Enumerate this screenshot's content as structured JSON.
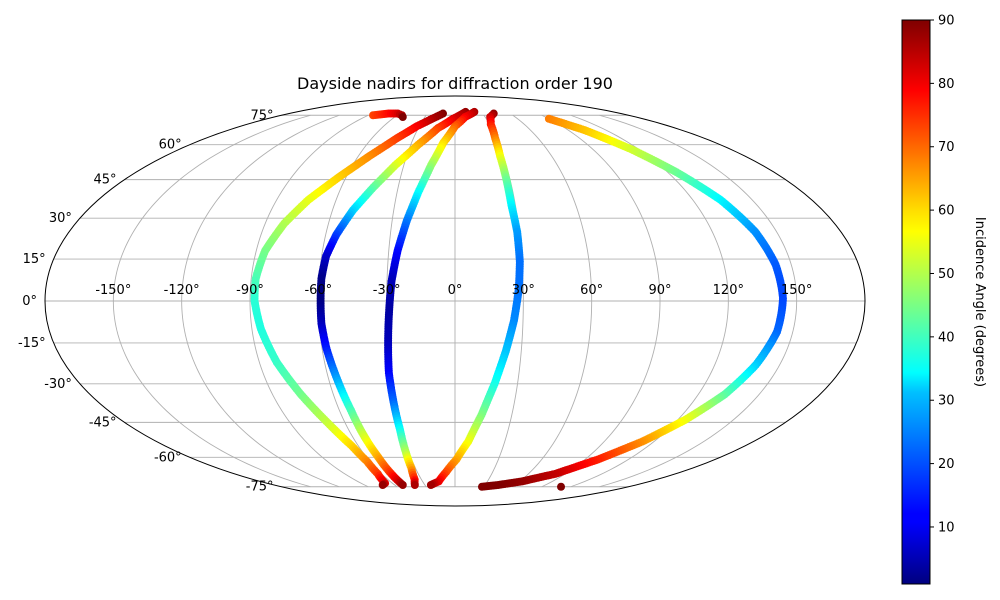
{
  "chart_data": {
    "type": "scatter",
    "projection": "mollweide",
    "title": "Dayside nadirs for diffraction order 190",
    "grid": true,
    "colormap": "jet",
    "lon_ticks": [
      -150,
      -120,
      -90,
      -60,
      -30,
      0,
      30,
      60,
      90,
      120,
      150
    ],
    "lon_tick_labels": [
      "-150°",
      "-120°",
      "-90°",
      "-60°",
      "-30°",
      "0°",
      "30°",
      "60°",
      "90°",
      "120°",
      "150°"
    ],
    "lat_ticks": [
      75,
      60,
      45,
      30,
      15,
      0,
      -15,
      -30,
      -45,
      -60,
      -75
    ],
    "lat_tick_labels": [
      "75°",
      "60°",
      "45°",
      "30°",
      "15°",
      "0°",
      "-15°",
      "-30°",
      "-45°",
      "-60°",
      "-75°"
    ],
    "colorbar": {
      "label": "Incidence Angle (degrees)",
      "range": [
        1,
        90
      ],
      "ticks": [
        10,
        20,
        30,
        40,
        50,
        60,
        70,
        80,
        90
      ],
      "tick_labels": [
        "10",
        "20",
        "30",
        "40",
        "50",
        "60",
        "70",
        "80",
        "90"
      ]
    },
    "series": [
      {
        "points": [
          {
            "lon": -85,
            "lat": 75,
            "inc": 73
          },
          {
            "lon": -72,
            "lat": 76,
            "inc": 78
          },
          {
            "lon": -62,
            "lat": 76,
            "inc": 82
          },
          {
            "lon": -55,
            "lat": 75,
            "inc": 86
          },
          {
            "lon": -52,
            "lat": 74,
            "inc": 90
          }
        ]
      },
      {
        "points": [
          {
            "lon": -13,
            "lat": 76,
            "inc": 90
          },
          {
            "lon": -22,
            "lat": 73,
            "inc": 86
          },
          {
            "lon": -32,
            "lat": 69,
            "inc": 80
          },
          {
            "lon": -42,
            "lat": 63,
            "inc": 74
          },
          {
            "lon": -53,
            "lat": 55,
            "inc": 67
          },
          {
            "lon": -64,
            "lat": 46,
            "inc": 61
          },
          {
            "lon": -74,
            "lat": 37,
            "inc": 55
          },
          {
            "lon": -81,
            "lat": 28,
            "inc": 50
          },
          {
            "lon": -86,
            "lat": 18,
            "inc": 45
          },
          {
            "lon": -88,
            "lat": 8,
            "inc": 41
          },
          {
            "lon": -88,
            "lat": 0,
            "inc": 38
          },
          {
            "lon": -86,
            "lat": -10,
            "inc": 37
          },
          {
            "lon": -82,
            "lat": -22,
            "inc": 39
          },
          {
            "lon": -76,
            "lat": -34,
            "inc": 44
          },
          {
            "lon": -69,
            "lat": -46,
            "inc": 52
          },
          {
            "lon": -64,
            "lat": -55,
            "inc": 60
          },
          {
            "lon": -62,
            "lat": -62,
            "inc": 67
          },
          {
            "lon": -63,
            "lat": -68,
            "inc": 74
          },
          {
            "lon": -67,
            "lat": -73,
            "inc": 82
          },
          {
            "lon": -72,
            "lat": -74,
            "inc": 88
          }
        ]
      },
      {
        "points": [
          {
            "lon": 12,
            "lat": 77,
            "inc": 88
          },
          {
            "lon": -2,
            "lat": 73,
            "inc": 82
          },
          {
            "lon": -14,
            "lat": 68,
            "inc": 74
          },
          {
            "lon": -25,
            "lat": 60,
            "inc": 64
          },
          {
            "lon": -35,
            "lat": 51,
            "inc": 54
          },
          {
            "lon": -43,
            "lat": 42,
            "inc": 43
          },
          {
            "lon": -50,
            "lat": 33,
            "inc": 31
          },
          {
            "lon": -55,
            "lat": 24,
            "inc": 18
          },
          {
            "lon": -58,
            "lat": 16,
            "inc": 8
          },
          {
            "lon": -59,
            "lat": 8,
            "inc": 2
          },
          {
            "lon": -59,
            "lat": 0,
            "inc": 1
          },
          {
            "lon": -59,
            "lat": -8,
            "inc": 6
          },
          {
            "lon": -58,
            "lat": -17,
            "inc": 14
          },
          {
            "lon": -56,
            "lat": -28,
            "inc": 26
          },
          {
            "lon": -54,
            "lat": -40,
            "inc": 40
          },
          {
            "lon": -53,
            "lat": -51,
            "inc": 53
          },
          {
            "lon": -52,
            "lat": -60,
            "inc": 64
          },
          {
            "lon": -52,
            "lat": -67,
            "inc": 74
          },
          {
            "lon": -52,
            "lat": -72,
            "inc": 83
          },
          {
            "lon": -52,
            "lat": -74,
            "inc": 88
          }
        ]
      },
      {
        "points": [
          {
            "lon": 22,
            "lat": 77,
            "inc": 86
          },
          {
            "lon": 10,
            "lat": 74,
            "inc": 80
          },
          {
            "lon": 0,
            "lat": 69,
            "inc": 71
          },
          {
            "lon": -8,
            "lat": 61,
            "inc": 60
          },
          {
            "lon": -14,
            "lat": 51,
            "inc": 48
          },
          {
            "lon": -19,
            "lat": 40,
            "inc": 35
          },
          {
            "lon": -23,
            "lat": 29,
            "inc": 23
          },
          {
            "lon": -26,
            "lat": 18,
            "inc": 13
          },
          {
            "lon": -28,
            "lat": 7,
            "inc": 6
          },
          {
            "lon": -29,
            "lat": -4,
            "inc": 4
          },
          {
            "lon": -30,
            "lat": -15,
            "inc": 6
          },
          {
            "lon": -31,
            "lat": -26,
            "inc": 12
          },
          {
            "lon": -31,
            "lat": -37,
            "inc": 21
          },
          {
            "lon": -31,
            "lat": -48,
            "inc": 35
          },
          {
            "lon": -32,
            "lat": -58,
            "inc": 50
          },
          {
            "lon": -33,
            "lat": -65,
            "inc": 64
          },
          {
            "lon": -36,
            "lat": -71,
            "inc": 77
          },
          {
            "lon": -40,
            "lat": -74,
            "inc": 86
          }
        ]
      },
      {
        "points": [
          {
            "lon": 42,
            "lat": 76,
            "inc": 88
          },
          {
            "lon": 35,
            "lat": 74,
            "inc": 83
          },
          {
            "lon": 31,
            "lat": 70,
            "inc": 77
          },
          {
            "lon": 29,
            "lat": 63,
            "inc": 68
          },
          {
            "lon": 28,
            "lat": 55,
            "inc": 56
          },
          {
            "lon": 28,
            "lat": 45,
            "inc": 44
          },
          {
            "lon": 28,
            "lat": 35,
            "inc": 34
          },
          {
            "lon": 29,
            "lat": 25,
            "inc": 26
          },
          {
            "lon": 29,
            "lat": 14,
            "inc": 22
          },
          {
            "lon": 28,
            "lat": 4,
            "inc": 22
          },
          {
            "lon": 26,
            "lat": -7,
            "inc": 24
          },
          {
            "lon": 23,
            "lat": -18,
            "inc": 29
          },
          {
            "lon": 19,
            "lat": -30,
            "inc": 36
          },
          {
            "lon": 14,
            "lat": -42,
            "inc": 45
          },
          {
            "lon": 8,
            "lat": -53,
            "inc": 55
          },
          {
            "lon": 1,
            "lat": -61,
            "inc": 64
          },
          {
            "lon": -7,
            "lat": -67,
            "inc": 72
          },
          {
            "lon": -15,
            "lat": -72,
            "inc": 80
          },
          {
            "lon": -24,
            "lat": -74,
            "inc": 87
          }
        ]
      },
      {
        "points": [
          {
            "lon": 90,
            "lat": 73,
            "inc": 68
          },
          {
            "lon": 103,
            "lat": 67,
            "inc": 62
          },
          {
            "lon": 115,
            "lat": 58,
            "inc": 53
          },
          {
            "lon": 125,
            "lat": 48,
            "inc": 44
          },
          {
            "lon": 134,
            "lat": 37,
            "inc": 34
          },
          {
            "lon": 140,
            "lat": 25,
            "inc": 25
          },
          {
            "lon": 143,
            "lat": 13,
            "inc": 20
          },
          {
            "lon": 144,
            "lat": 1,
            "inc": 18
          },
          {
            "lon": 143,
            "lat": -11,
            "inc": 21
          },
          {
            "lon": 139,
            "lat": -23,
            "inc": 30
          },
          {
            "lon": 133,
            "lat": -34,
            "inc": 42
          },
          {
            "lon": 124,
            "lat": -44,
            "inc": 55
          },
          {
            "lon": 113,
            "lat": -53,
            "inc": 66
          },
          {
            "lon": 99,
            "lat": -61,
            "inc": 76
          },
          {
            "lon": 82,
            "lat": -68,
            "inc": 84
          },
          {
            "lon": 62,
            "lat": -72,
            "inc": 88
          },
          {
            "lon": 43,
            "lat": -74,
            "inc": 90
          },
          {
            "lon": 28,
            "lat": -75,
            "inc": 90
          }
        ]
      },
      {
        "points": [
          {
            "lon": 110,
            "lat": -75,
            "inc": 90
          }
        ]
      }
    ]
  }
}
